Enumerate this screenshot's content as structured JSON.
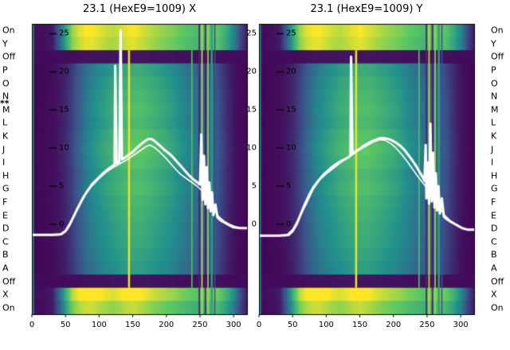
{
  "colors": {
    "background": "#ffffff",
    "text": "#000000",
    "curve": "#ffffff"
  },
  "chart_data": {
    "type": "heatmap",
    "x_axis": {
      "min": 0,
      "max": 320,
      "ticks": [
        0,
        50,
        100,
        150,
        200,
        250,
        300
      ]
    },
    "value_axis": {
      "min": -11.8,
      "max": 26.3,
      "ticks": [
        25,
        20,
        15,
        10,
        5,
        0
      ]
    },
    "row_labels": [
      "On",
      "Y",
      "Off",
      "P",
      "O",
      "N",
      "M",
      "L",
      "K",
      "J",
      "I",
      "H",
      "G",
      "F",
      "E",
      "D",
      "C",
      "B",
      "A",
      "Off",
      "X",
      "On"
    ],
    "row_marker": {
      "text": "**",
      "row_boundary_index": 6
    },
    "colormap": {
      "stops": [
        [
          0,
          "#440154"
        ],
        [
          0.25,
          "#3b528b"
        ],
        [
          0.5,
          "#21918c"
        ],
        [
          0.75,
          "#5ec962"
        ],
        [
          1,
          "#fde725"
        ]
      ]
    },
    "profiles": {
      "body": [
        0.02,
        0.02,
        0.03,
        0.04,
        0.07,
        0.12,
        0.2,
        0.3,
        0.4,
        0.47,
        0.52,
        0.56,
        0.6,
        0.63,
        0.66,
        0.68,
        0.68,
        0.66,
        0.63,
        0.6,
        0.57,
        0.53,
        0.48,
        0.43,
        0.38,
        0.33,
        0.32,
        0.3,
        0.22,
        0.13,
        0.06,
        0.03,
        0.02
      ],
      "bright": [
        0.04,
        0.04,
        0.05,
        0.08,
        0.3,
        0.6,
        0.85,
        0.95,
        1.0,
        1.0,
        0.96,
        0.92,
        0.9,
        0.93,
        0.97,
        1.0,
        0.96,
        0.92,
        0.88,
        0.85,
        0.82,
        0.8,
        0.76,
        0.73,
        0.7,
        0.67,
        0.73,
        0.78,
        0.7,
        0.6,
        0.45,
        0.22,
        0.07
      ],
      "dark": [
        0.03,
        0.03,
        0.03,
        0.03,
        0.03,
        0.03,
        0.04,
        0.04,
        0.05,
        0.05,
        0.05,
        0.05,
        0.06,
        0.06,
        0.06,
        0.06,
        0.06,
        0.06,
        0.05,
        0.05,
        0.05,
        0.05,
        0.04,
        0.04,
        0.04,
        0.04,
        0.05,
        0.05,
        0.04,
        0.04,
        0.03,
        0.03,
        0.03
      ]
    },
    "rows": [
      {
        "label": "On",
        "profile": "bright",
        "gain": 1.0
      },
      {
        "label": "Y",
        "profile": "bright",
        "gain": 0.96
      },
      {
        "label": "Off",
        "profile": "dark",
        "gain": 1.0
      },
      {
        "label": "P",
        "profile": "body",
        "gain": 0.9
      },
      {
        "label": "O",
        "profile": "body",
        "gain": 0.96
      },
      {
        "label": "N",
        "profile": "body",
        "gain": 1.0
      },
      {
        "label": "M",
        "profile": "body",
        "gain": 1.03
      },
      {
        "label": "L",
        "profile": "body",
        "gain": 1.0
      },
      {
        "label": "K",
        "profile": "body",
        "gain": 1.06
      },
      {
        "label": "J",
        "profile": "body",
        "gain": 1.1
      },
      {
        "label": "I",
        "profile": "body",
        "gain": 1.06
      },
      {
        "label": "H",
        "profile": "body",
        "gain": 1.0
      },
      {
        "label": "G",
        "profile": "body",
        "gain": 1.03
      },
      {
        "label": "F",
        "profile": "body",
        "gain": 0.98
      },
      {
        "label": "E",
        "profile": "body",
        "gain": 0.95
      },
      {
        "label": "D",
        "profile": "body",
        "gain": 0.92
      },
      {
        "label": "C",
        "profile": "body",
        "gain": 0.9
      },
      {
        "label": "B",
        "profile": "body",
        "gain": 0.86
      },
      {
        "label": "A",
        "profile": "body",
        "gain": 0.82
      },
      {
        "label": "Off",
        "profile": "dark",
        "gain": 1.0
      },
      {
        "label": "X",
        "profile": "bright",
        "gain": 1.05
      },
      {
        "label": "On",
        "profile": "bright",
        "gain": 0.92
      }
    ],
    "stripes": [
      {
        "x": 1,
        "width": 2,
        "value": 0.5,
        "scope": "all"
      },
      {
        "x": 143,
        "width": 3,
        "value": 0.97,
        "scope": "body"
      },
      {
        "x": 237,
        "width": 2,
        "value": 0.7,
        "scope": "body"
      },
      {
        "x": 248,
        "width": 2,
        "value": 0.12,
        "scope": "all"
      },
      {
        "x": 252,
        "width": 2,
        "value": 0.93,
        "scope": "all"
      },
      {
        "x": 257,
        "width": 2,
        "value": 0.08,
        "scope": "all"
      },
      {
        "x": 261,
        "width": 2,
        "value": 0.85,
        "scope": "all"
      },
      {
        "x": 266,
        "width": 3,
        "value": 0.55,
        "scope": "all"
      },
      {
        "x": 271,
        "width": 2,
        "value": 0.25,
        "scope": "all"
      }
    ],
    "panels": [
      {
        "title": "23.1 (HexE9=1009) X",
        "series": [
          {
            "name": "trace1",
            "lineWidth": 3,
            "points": [
              [
                0,
                -1.4
              ],
              [
                30,
                -1.4
              ],
              [
                44,
                -1.3
              ],
              [
                50,
                -0.9
              ],
              [
                56,
                -0.1
              ],
              [
                62,
                1.0
              ],
              [
                68,
                2.1
              ],
              [
                75,
                3.3
              ],
              [
                82,
                4.3
              ],
              [
                90,
                5.3
              ],
              [
                98,
                6.0
              ],
              [
                106,
                6.7
              ],
              [
                113,
                7.2
              ],
              [
                119,
                7.6
              ],
              [
                123,
                7.8
              ],
              [
                124,
                20.8
              ],
              [
                126,
                8.0
              ],
              [
                130,
                8.2
              ],
              [
                132,
                25.4
              ],
              [
                134,
                8.5
              ],
              [
                139,
                8.8
              ],
              [
                144,
                9.1
              ],
              [
                150,
                9.5
              ],
              [
                156,
                10.0
              ],
              [
                162,
                10.5
              ],
              [
                168,
                10.9
              ],
              [
                173,
                11.2
              ],
              [
                178,
                11.2
              ],
              [
                183,
                10.9
              ],
              [
                188,
                10.5
              ],
              [
                193,
                10.1
              ],
              [
                198,
                9.7
              ],
              [
                204,
                9.3
              ],
              [
                210,
                8.8
              ],
              [
                216,
                8.2
              ],
              [
                222,
                7.6
              ],
              [
                228,
                7.0
              ],
              [
                234,
                6.4
              ],
              [
                240,
                5.9
              ],
              [
                246,
                5.5
              ],
              [
                250,
                5.2
              ],
              [
                252,
                11.8
              ],
              [
                254,
                3.2
              ],
              [
                256,
                9.0
              ],
              [
                258,
                2.6
              ],
              [
                260,
                7.5
              ],
              [
                262,
                2.1
              ],
              [
                264,
                5.5
              ],
              [
                266,
                1.7
              ],
              [
                268,
                4.2
              ],
              [
                270,
                1.2
              ],
              [
                273,
                2.6
              ],
              [
                276,
                0.9
              ],
              [
                281,
                0.5
              ],
              [
                287,
                0.2
              ],
              [
                293,
                -0.1
              ],
              [
                300,
                -0.4
              ],
              [
                310,
                -0.5
              ],
              [
                320,
                -0.5
              ]
            ]
          },
          {
            "name": "trace2",
            "lineWidth": 1.6,
            "points": [
              [
                0,
                -1.4
              ],
              [
                40,
                -1.4
              ],
              [
                50,
                -0.8
              ],
              [
                60,
                0.7
              ],
              [
                70,
                2.3
              ],
              [
                80,
                4.0
              ],
              [
                90,
                5.1
              ],
              [
                100,
                6.0
              ],
              [
                110,
                6.8
              ],
              [
                120,
                7.4
              ],
              [
                130,
                7.9
              ],
              [
                140,
                8.4
              ],
              [
                150,
                9.0
              ],
              [
                160,
                9.6
              ],
              [
                170,
                10.2
              ],
              [
                176,
                10.4
              ],
              [
                182,
                10.1
              ],
              [
                190,
                9.5
              ],
              [
                198,
                8.8
              ],
              [
                206,
                8.0
              ],
              [
                214,
                7.2
              ],
              [
                222,
                6.5
              ],
              [
                230,
                6.0
              ],
              [
                238,
                5.5
              ],
              [
                246,
                5.0
              ],
              [
                254,
                4.3
              ],
              [
                262,
                3.3
              ],
              [
                270,
                2.1
              ],
              [
                278,
                1.0
              ],
              [
                286,
                0.4
              ],
              [
                294,
                0.0
              ],
              [
                302,
                -0.3
              ],
              [
                312,
                -0.5
              ],
              [
                320,
                -0.5
              ]
            ]
          }
        ]
      },
      {
        "title": "23.1 (HexE9=1009) Y",
        "series": [
          {
            "name": "trace1",
            "lineWidth": 3,
            "points": [
              [
                0,
                -1.5
              ],
              [
                30,
                -1.5
              ],
              [
                44,
                -1.4
              ],
              [
                50,
                -0.9
              ],
              [
                56,
                0.0
              ],
              [
                62,
                1.3
              ],
              [
                68,
                2.6
              ],
              [
                75,
                3.9
              ],
              [
                82,
                5.0
              ],
              [
                90,
                5.9
              ],
              [
                98,
                6.7
              ],
              [
                106,
                7.3
              ],
              [
                113,
                7.8
              ],
              [
                120,
                8.2
              ],
              [
                127,
                8.5
              ],
              [
                133,
                8.8
              ],
              [
                136,
                9.0
              ],
              [
                137,
                22.0
              ],
              [
                139,
                9.2
              ],
              [
                144,
                9.6
              ],
              [
                150,
                9.9
              ],
              [
                156,
                10.3
              ],
              [
                162,
                10.6
              ],
              [
                168,
                10.9
              ],
              [
                174,
                11.1
              ],
              [
                180,
                11.3
              ],
              [
                186,
                11.3
              ],
              [
                192,
                11.2
              ],
              [
                198,
                11.0
              ],
              [
                204,
                10.7
              ],
              [
                210,
                10.3
              ],
              [
                216,
                9.8
              ],
              [
                222,
                9.1
              ],
              [
                228,
                8.4
              ],
              [
                234,
                7.6
              ],
              [
                240,
                6.7
              ],
              [
                244,
                6.1
              ],
              [
                246,
                5.7
              ],
              [
                248,
                10.4
              ],
              [
                249,
                3.4
              ],
              [
                251,
                8.1
              ],
              [
                253,
                2.7
              ],
              [
                255,
                13.2
              ],
              [
                257,
                3.0
              ],
              [
                259,
                9.4
              ],
              [
                261,
                2.2
              ],
              [
                263,
                6.7
              ],
              [
                265,
                1.8
              ],
              [
                267,
                5.0
              ],
              [
                269,
                1.4
              ],
              [
                272,
                3.4
              ],
              [
                275,
                1.0
              ],
              [
                279,
                0.7
              ],
              [
                284,
                0.4
              ],
              [
                290,
                0.1
              ],
              [
                296,
                -0.2
              ],
              [
                302,
                -0.5
              ],
              [
                310,
                -0.7
              ],
              [
                320,
                -0.7
              ]
            ]
          },
          {
            "name": "trace2",
            "lineWidth": 1.6,
            "points": [
              [
                0,
                -1.5
              ],
              [
                40,
                -1.5
              ],
              [
                50,
                -0.7
              ],
              [
                60,
                0.9
              ],
              [
                70,
                2.6
              ],
              [
                80,
                4.5
              ],
              [
                90,
                5.8
              ],
              [
                100,
                6.6
              ],
              [
                110,
                7.3
              ],
              [
                120,
                8.0
              ],
              [
                130,
                8.6
              ],
              [
                140,
                9.2
              ],
              [
                150,
                9.8
              ],
              [
                160,
                10.3
              ],
              [
                170,
                10.8
              ],
              [
                180,
                11.1
              ],
              [
                188,
                11.0
              ],
              [
                196,
                10.6
              ],
              [
                204,
                10.0
              ],
              [
                212,
                9.2
              ],
              [
                220,
                8.3
              ],
              [
                228,
                7.3
              ],
              [
                236,
                6.3
              ],
              [
                244,
                5.4
              ],
              [
                252,
                4.5
              ],
              [
                260,
                3.4
              ],
              [
                268,
                2.2
              ],
              [
                276,
                1.2
              ],
              [
                284,
                0.5
              ],
              [
                292,
                0.0
              ],
              [
                300,
                -0.4
              ],
              [
                310,
                -0.7
              ],
              [
                320,
                -0.7
              ]
            ]
          }
        ]
      }
    ]
  }
}
